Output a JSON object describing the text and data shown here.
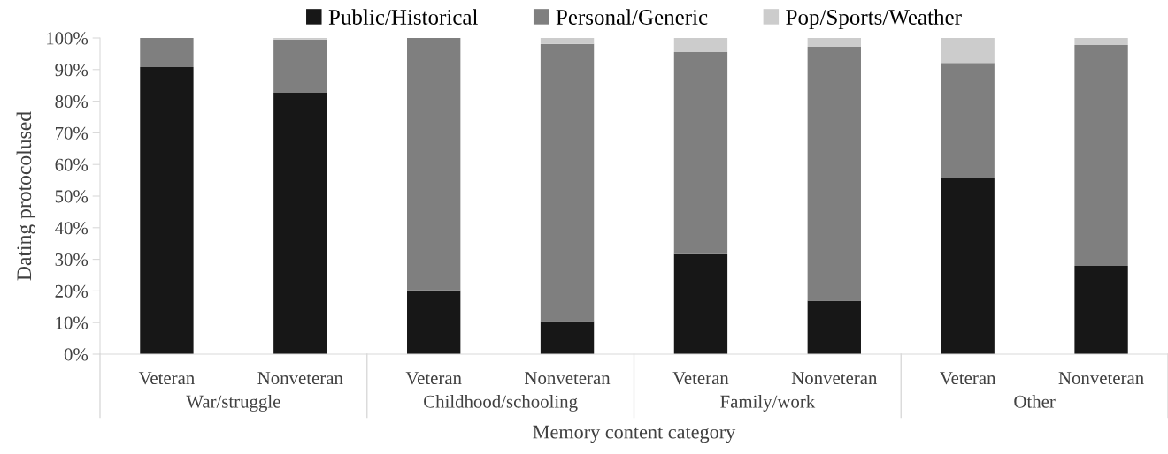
{
  "chart_data": {
    "type": "bar",
    "stacked": true,
    "ylabel": "Dating protocolused",
    "xlabel": "Memory content category",
    "categories": [
      "Veteran",
      "Nonveteran",
      "Veteran",
      "Nonveteran",
      "Veteran",
      "Nonveteran",
      "Veteran",
      "Nonveteran"
    ],
    "annotations": [
      "War/struggle",
      "Childhood/schooling",
      "Family/work",
      "Other"
    ],
    "series": [
      {
        "name": "Public/Historical",
        "color": "#171717",
        "values": [
          90.8,
          82.7,
          20.2,
          10.5,
          31.6,
          16.9,
          55.9,
          27.9
        ]
      },
      {
        "name": "Personal/Generic",
        "color": "#7f7f7f",
        "values": [
          9.2,
          16.8,
          79.8,
          87.6,
          63.9,
          80.3,
          36.2,
          69.9
        ]
      },
      {
        "name": "Pop/Sports/Weather",
        "color": "#cccccc",
        "values": [
          0,
          0.5,
          0,
          1.9,
          4.5,
          2.8,
          7.9,
          2.2
        ]
      }
    ],
    "ylim": [
      0,
      100
    ],
    "yticks": [
      {
        "value": 0,
        "label": "0%"
      },
      {
        "value": 10,
        "label": "10%"
      },
      {
        "value": 20,
        "label": "20%"
      },
      {
        "value": 30,
        "label": "30%"
      },
      {
        "value": 40,
        "label": "40%"
      },
      {
        "value": 50,
        "label": "50%"
      },
      {
        "value": 60,
        "label": "60%"
      },
      {
        "value": 70,
        "label": "70%"
      },
      {
        "value": 80,
        "label": "80%"
      },
      {
        "value": 90,
        "label": "90%"
      },
      {
        "value": 100,
        "label": "100%"
      }
    ],
    "grid": false,
    "legend": "top"
  }
}
